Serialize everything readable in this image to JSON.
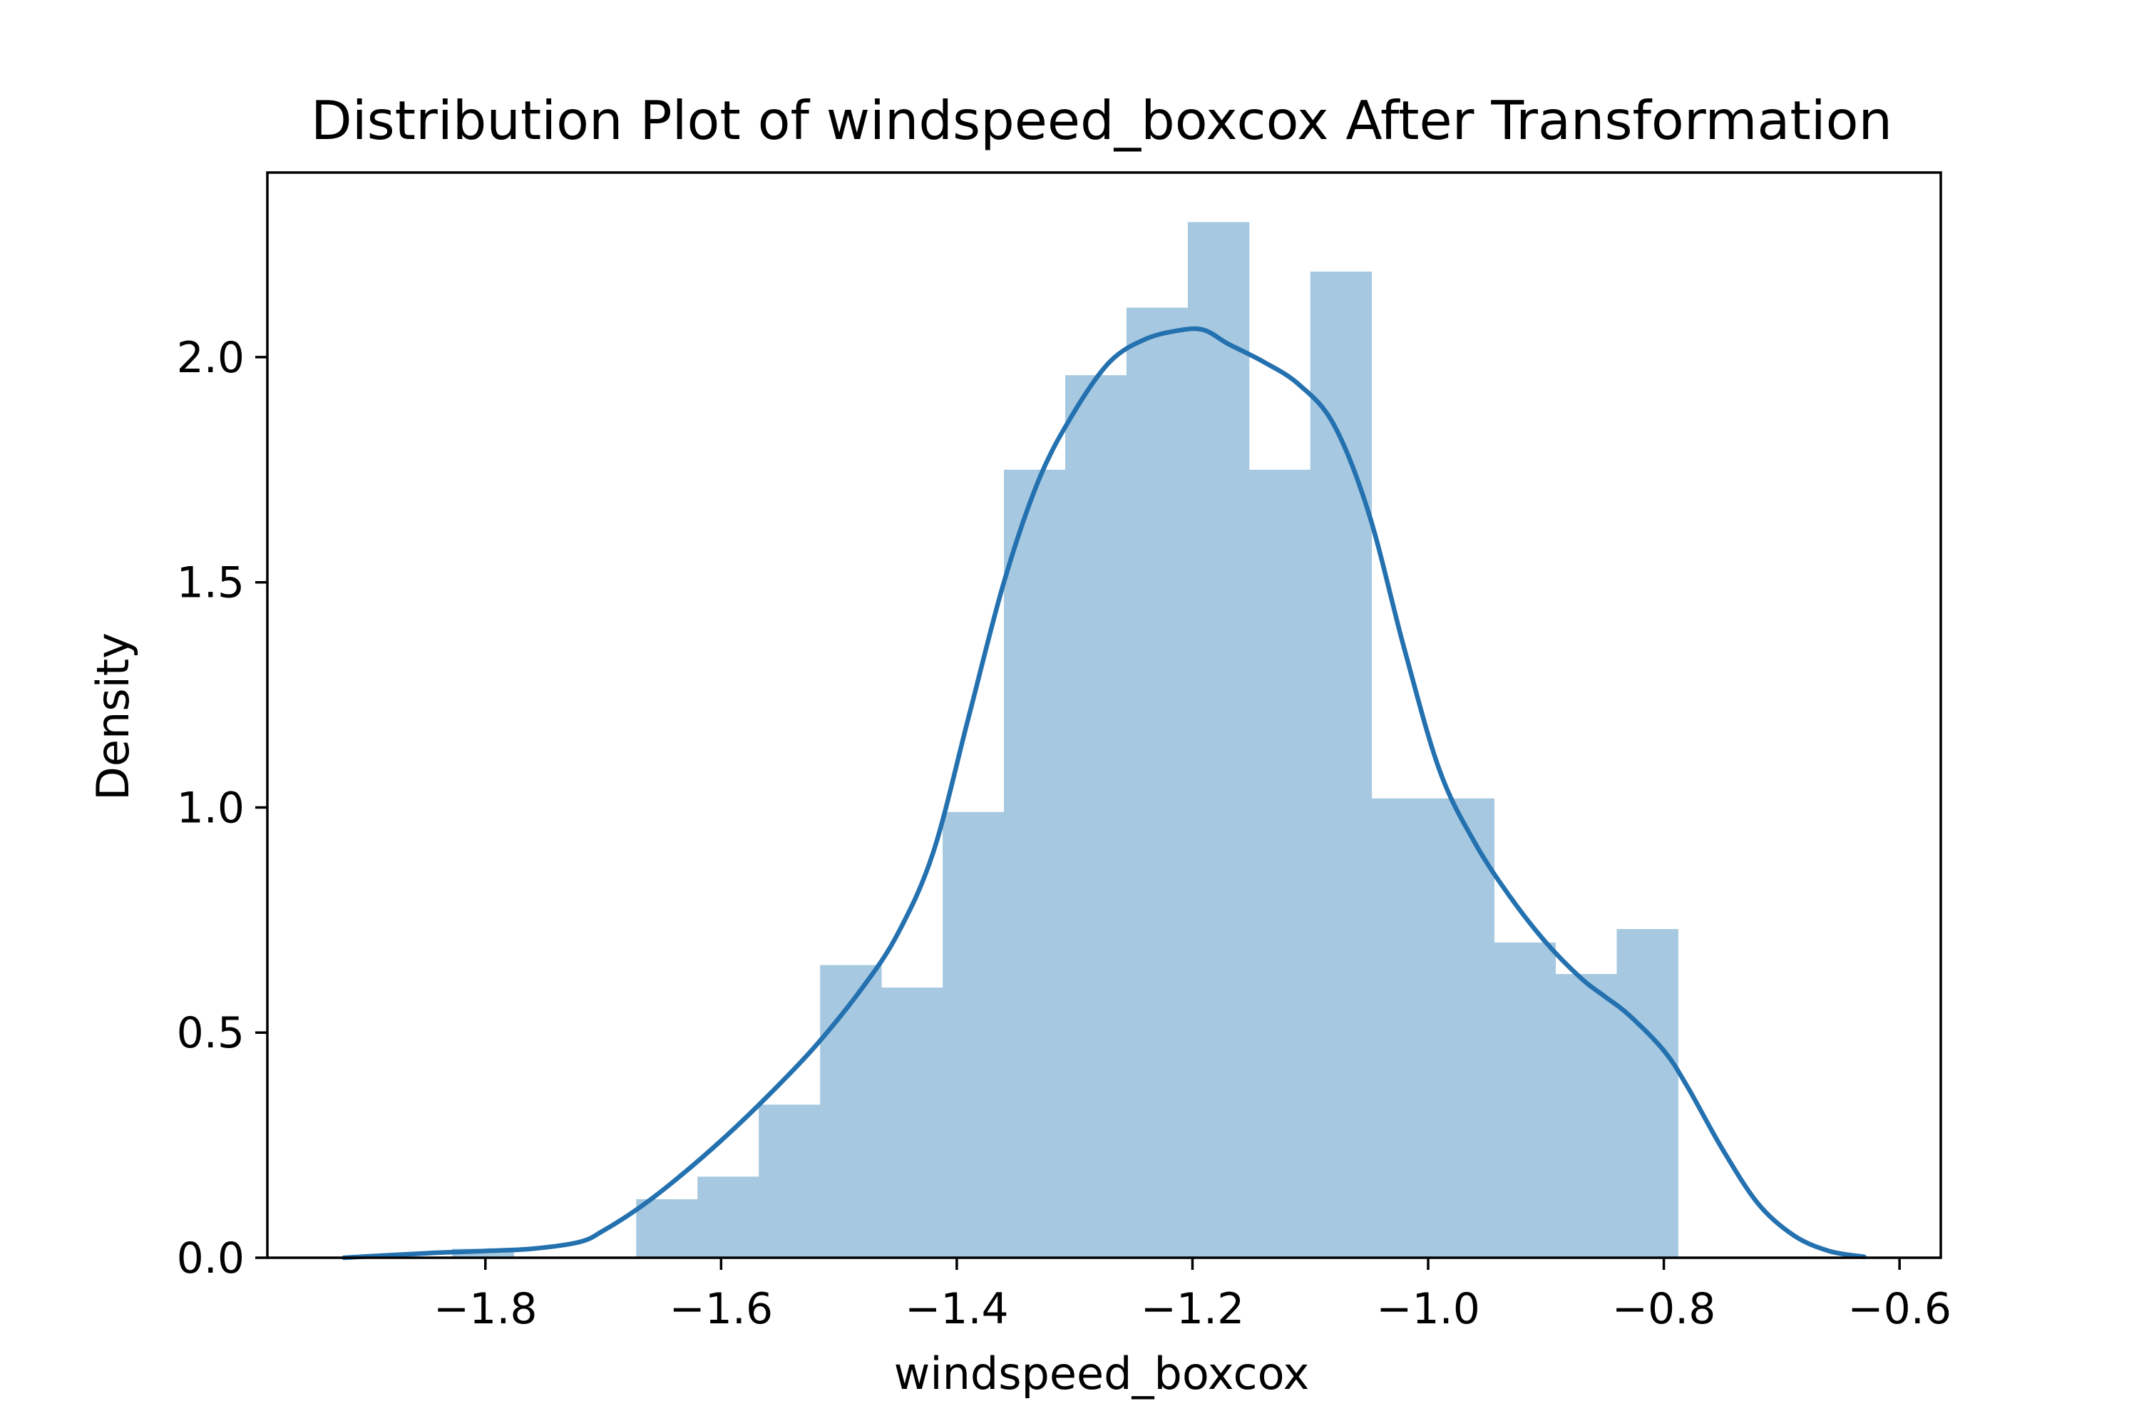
{
  "chart_data": {
    "type": "bar",
    "title": "Distribution Plot of windspeed_boxcox After Transformation",
    "xlabel": "windspeed_boxcox",
    "ylabel": "Density",
    "xlim": [
      -1.985,
      -0.565
    ],
    "ylim": [
      0.0,
      2.41
    ],
    "xticks": [
      -1.8,
      -1.6,
      -1.4,
      -1.2,
      -1.0,
      -0.8,
      -0.6
    ],
    "xtick_labels": [
      "−1.8",
      "−1.6",
      "−1.4",
      "−1.2",
      "−1.0",
      "−0.8",
      "−0.6"
    ],
    "yticks": [
      0.0,
      0.5,
      1.0,
      1.5,
      2.0
    ],
    "ytick_labels": [
      "0.0",
      "0.5",
      "1.0",
      "1.5",
      "2.0"
    ],
    "grid": false,
    "legend": "none",
    "colors": {
      "bars": "#a6c8e0",
      "kde": "#2471b0",
      "axes": "#000000"
    },
    "histogram": {
      "bin_edges": [
        -1.932,
        -1.88,
        -1.828,
        -1.776,
        -1.724,
        -1.672,
        -1.62,
        -1.568,
        -1.516,
        -1.464,
        -1.412,
        -1.36,
        -1.308,
        -1.256,
        -1.204,
        -1.152,
        -1.1,
        -1.048,
        -0.996,
        -0.944,
        -0.892,
        -0.84,
        -0.788
      ],
      "densities": [
        0.0,
        0.0,
        0.02,
        0.0,
        0.0,
        0.13,
        0.18,
        0.34,
        0.65,
        0.6,
        0.99,
        1.75,
        1.96,
        2.11,
        2.3,
        1.75,
        2.19,
        1.02,
        1.02,
        0.7,
        0.63,
        0.73
      ]
    },
    "kde": {
      "x": [
        -1.92,
        -1.85,
        -1.8,
        -1.76,
        -1.72,
        -1.7,
        -1.67,
        -1.64,
        -1.6,
        -1.56,
        -1.52,
        -1.48,
        -1.45,
        -1.42,
        -1.39,
        -1.36,
        -1.33,
        -1.3,
        -1.27,
        -1.24,
        -1.21,
        -1.19,
        -1.17,
        -1.14,
        -1.11,
        -1.08,
        -1.05,
        -1.02,
        -0.99,
        -0.96,
        -0.93,
        -0.9,
        -0.87,
        -0.85,
        -0.83,
        -0.8,
        -0.78,
        -0.75,
        -0.72,
        -0.69,
        -0.66,
        -0.63
      ],
      "y": [
        0.0,
        0.01,
        0.015,
        0.02,
        0.035,
        0.06,
        0.11,
        0.17,
        0.26,
        0.36,
        0.47,
        0.6,
        0.72,
        0.9,
        1.2,
        1.5,
        1.73,
        1.88,
        1.99,
        2.04,
        2.06,
        2.06,
        2.03,
        1.99,
        1.94,
        1.85,
        1.65,
        1.35,
        1.08,
        0.92,
        0.8,
        0.7,
        0.62,
        0.58,
        0.54,
        0.46,
        0.38,
        0.24,
        0.12,
        0.05,
        0.015,
        0.002
      ]
    }
  }
}
